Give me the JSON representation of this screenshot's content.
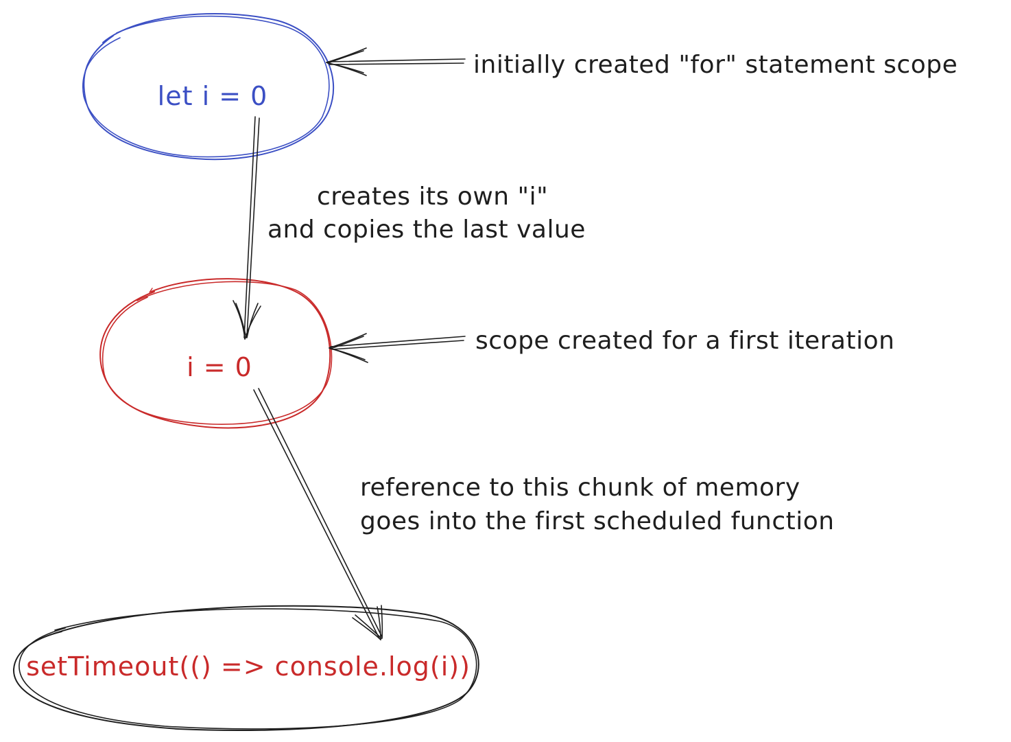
{
  "colors": {
    "blue": "#3b4fc4",
    "red": "#c92a2a",
    "ink": "#1e1e1e",
    "background": "#ffffff"
  },
  "nodes": {
    "for_scope": {
      "label": "let i = 0"
    },
    "iteration_scope": {
      "label": "i = 0"
    },
    "callback": {
      "label": "setTimeout(() => console.log(i))"
    }
  },
  "annotations": {
    "for_scope_note": "initially created \"for\" statement scope",
    "iteration_scope_note": "scope created for a first iteration",
    "copy_note_line1": "creates its own \"i\"",
    "copy_note_line2": "and copies the last value",
    "reference_note_line1": "reference to this chunk of memory",
    "reference_note_line2": "goes into the first scheduled function"
  }
}
